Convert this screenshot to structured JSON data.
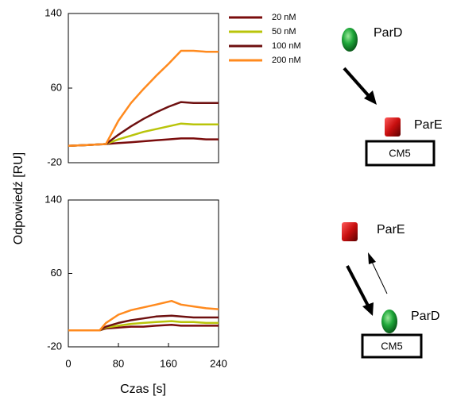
{
  "chart_data": [
    {
      "type": "line",
      "y_label": "Odpowiedź [RU]",
      "legend": "right",
      "xlim": [
        0,
        240
      ],
      "ylim": [
        -20,
        140
      ],
      "yticks": [
        -20,
        60,
        140
      ],
      "x": [
        0,
        30,
        60,
        80,
        100,
        120,
        140,
        160,
        180,
        200,
        220,
        240
      ],
      "series": [
        {
          "name": "20 nM",
          "color": "#7a0c0c",
          "values": [
            -2,
            -1,
            0,
            1,
            2,
            3,
            4,
            5,
            6,
            6,
            5,
            5
          ]
        },
        {
          "name": "50 nM",
          "color": "#b9c40a",
          "values": [
            -2,
            -1,
            0,
            5,
            9,
            13,
            16,
            19,
            22,
            21,
            21,
            21
          ]
        },
        {
          "name": "100 nM",
          "color": "#6e1010",
          "values": [
            -2,
            -1,
            0,
            10,
            19,
            27,
            34,
            40,
            45,
            44,
            44,
            44
          ]
        },
        {
          "name": "200 nM",
          "color": "#ff8a1e",
          "values": [
            -2,
            -1,
            0,
            25,
            44,
            59,
            73,
            86,
            100,
            100,
            99,
            99
          ]
        }
      ]
    },
    {
      "type": "line",
      "x_label": "Czas [s]",
      "xlim": [
        0,
        240
      ],
      "xticks": [
        0,
        80,
        160,
        240
      ],
      "ylim": [
        -20,
        140
      ],
      "yticks": [
        -20,
        60,
        140
      ],
      "x": [
        0,
        25,
        50,
        60,
        80,
        100,
        120,
        140,
        165,
        180,
        200,
        220,
        240
      ],
      "series": [
        {
          "color": "#7a0c0c",
          "values": [
            -2,
            -2,
            -2,
            0,
            1,
            2,
            2,
            3,
            4,
            3,
            3,
            3,
            3
          ]
        },
        {
          "color": "#b9c40a",
          "values": [
            -2,
            -2,
            -2,
            1,
            3,
            5,
            6,
            7,
            8,
            7,
            7,
            6,
            6
          ]
        },
        {
          "color": "#6e1010",
          "values": [
            -2,
            -2,
            -2,
            2,
            6,
            9,
            11,
            13,
            14,
            13,
            12,
            12,
            12
          ]
        },
        {
          "color": "#ff8a1e",
          "values": [
            -2,
            -2,
            -2,
            6,
            15,
            20,
            23,
            26,
            30,
            26,
            24,
            22,
            21
          ]
        }
      ]
    }
  ],
  "diagram_top": {
    "ligand": "ParD",
    "analyte": "ParE",
    "chip": "CM5"
  },
  "diagram_bottom": {
    "analyte": "ParE",
    "ligand": "ParD",
    "chip": "CM5"
  }
}
